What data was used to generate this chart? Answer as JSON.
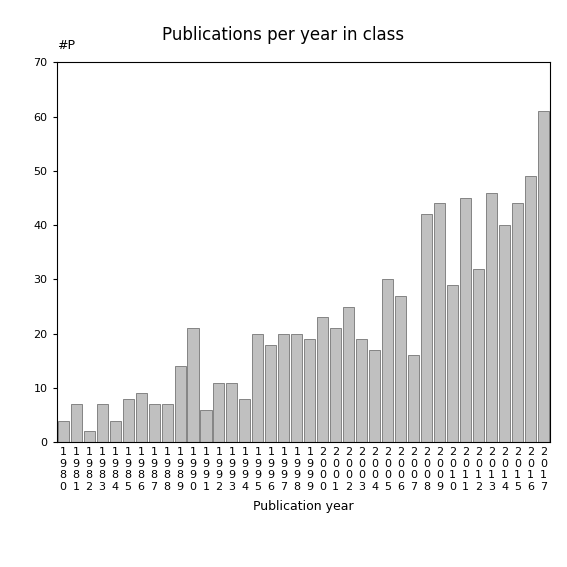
{
  "title": "Publications per year in class",
  "xlabel": "Publication year",
  "ylabel": "#P",
  "years": [
    "1980",
    "1981",
    "1982",
    "1983",
    "1984",
    "1985",
    "1986",
    "1987",
    "1988",
    "1989",
    "1990",
    "1991",
    "1992",
    "1993",
    "1994",
    "1995",
    "1996",
    "1997",
    "1998",
    "1999",
    "2000",
    "2001",
    "2002",
    "2003",
    "2004",
    "2005",
    "2006",
    "2007",
    "2008",
    "2009",
    "2010",
    "2011",
    "2012",
    "2013",
    "2014",
    "2015",
    "2016",
    "2017"
  ],
  "values": [
    4,
    7,
    2,
    7,
    4,
    8,
    9,
    7,
    7,
    14,
    21,
    6,
    11,
    11,
    8,
    20,
    18,
    20,
    20,
    19,
    23,
    21,
    25,
    19,
    17,
    30,
    27,
    16,
    42,
    44,
    29,
    45,
    32,
    46,
    40,
    44,
    49,
    61
  ],
  "bar_color": "#c0c0c0",
  "bar_edgecolor": "#606060",
  "ylim": [
    0,
    70
  ],
  "yticks": [
    0,
    10,
    20,
    30,
    40,
    50,
    60,
    70
  ],
  "bg_color": "#ffffff",
  "title_fontsize": 12,
  "label_fontsize": 9,
  "tick_fontsize": 8
}
